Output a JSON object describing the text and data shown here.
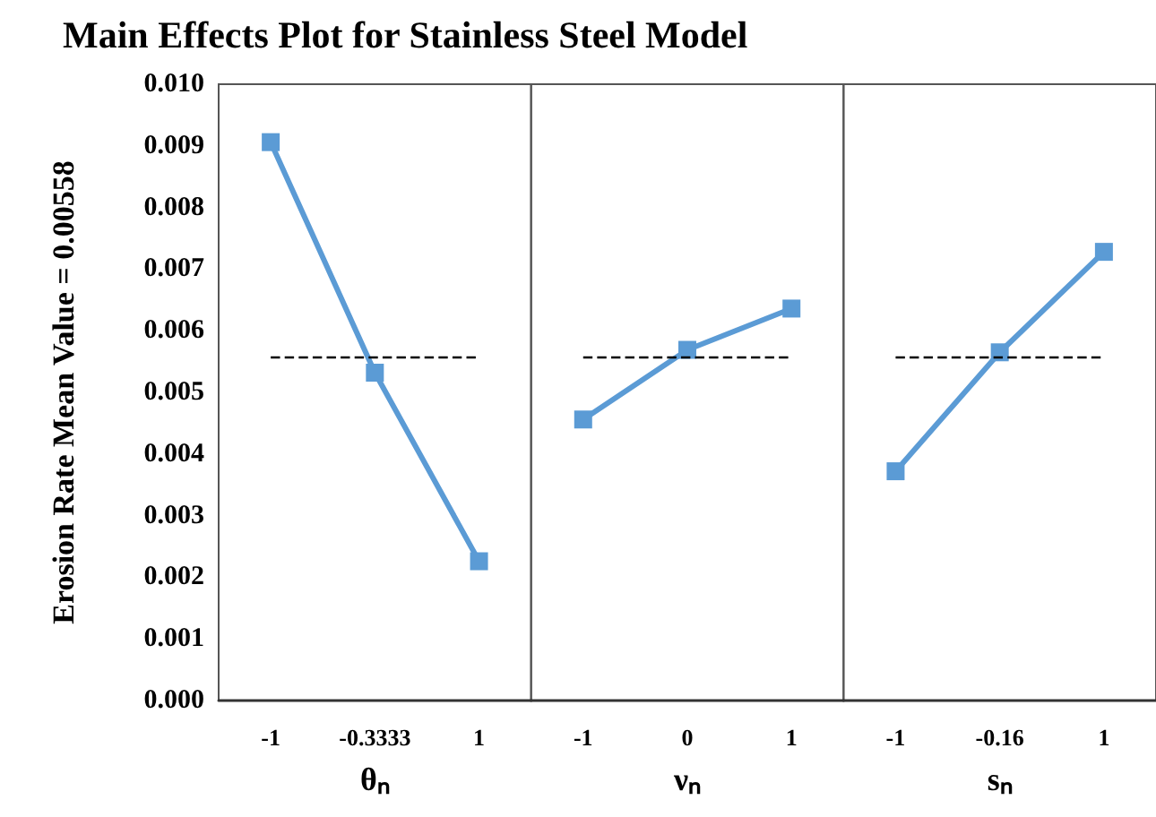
{
  "chart_data": [
    {
      "type": "line",
      "title": "Main Effects Plot for Stainless Steel Model",
      "ylabel": "Erosion Rate Mean Value = 0.00558",
      "xlabel": "θₙ",
      "categories": [
        "-1",
        "-0.3333",
        "1"
      ],
      "series": [
        {
          "color": "#5b9bd5",
          "values": [
            0.00906,
            0.00532,
            0.00226
          ]
        }
      ],
      "ylim": [
        0,
        0.01
      ],
      "yticks": [
        {
          "value": 0,
          "label": "0.000"
        },
        {
          "value": 0.001,
          "label": "0.001"
        },
        {
          "value": 0.002,
          "label": "0.002"
        },
        {
          "value": 0.003,
          "label": "0.003"
        },
        {
          "value": 0.004,
          "label": "0.004"
        },
        {
          "value": 0.005,
          "label": "0.005"
        },
        {
          "value": 0.006,
          "label": "0.006"
        },
        {
          "value": 0.007,
          "label": "0.007"
        },
        {
          "value": 0.008,
          "label": "0.008"
        },
        {
          "value": 0.009,
          "label": "0.009"
        },
        {
          "value": 0.01,
          "label": "0.010"
        }
      ],
      "ref_lines": [
        {
          "axis": "y",
          "value": 0.00558,
          "color": "#000000",
          "line_style": "dashed"
        }
      ],
      "marker": "square",
      "grid": false
    },
    {
      "type": "line",
      "xlabel": "νₙ",
      "categories": [
        "-1",
        "0",
        "1"
      ],
      "series": [
        {
          "color": "#5b9bd5",
          "values": [
            0.00456,
            0.00569,
            0.00636
          ]
        }
      ],
      "ylim": [
        0,
        0.01
      ],
      "tick_labels": "x",
      "ref_lines": [
        {
          "axis": "y",
          "value": 0.00558,
          "color": "#000000",
          "line_style": "dashed"
        }
      ],
      "marker": "square",
      "grid": false
    },
    {
      "type": "line",
      "xlabel": "sₙ",
      "categories": [
        "-1",
        "-0.16",
        "1"
      ],
      "series": [
        {
          "color": "#5b9bd5",
          "values": [
            0.00372,
            0.00565,
            0.00728
          ]
        }
      ],
      "ylim": [
        0,
        0.01
      ],
      "tick_labels": "x",
      "ref_lines": [
        {
          "axis": "y",
          "value": 0.00558,
          "color": "#000000",
          "line_style": "dashed"
        }
      ],
      "marker": "square",
      "grid": false
    }
  ]
}
